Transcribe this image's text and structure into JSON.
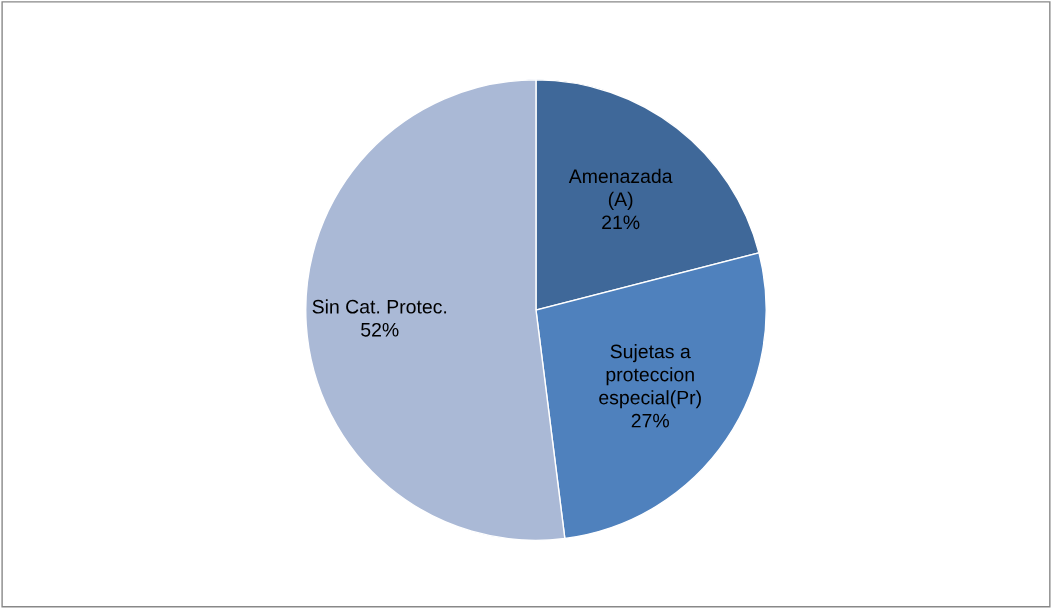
{
  "chart_data": {
    "type": "pie",
    "categories": [
      "Amenazada\n(A)",
      "Sujetas a\nproteccion\nespecial(Pr)",
      "Sin Cat. Protec."
    ],
    "values": [
      21,
      27,
      52
    ],
    "colors": [
      "#3f6899",
      "#4f81bd",
      "#aab9d6"
    ],
    "value_labels": [
      "21%",
      "27%",
      "52%"
    ],
    "legend": false
  }
}
